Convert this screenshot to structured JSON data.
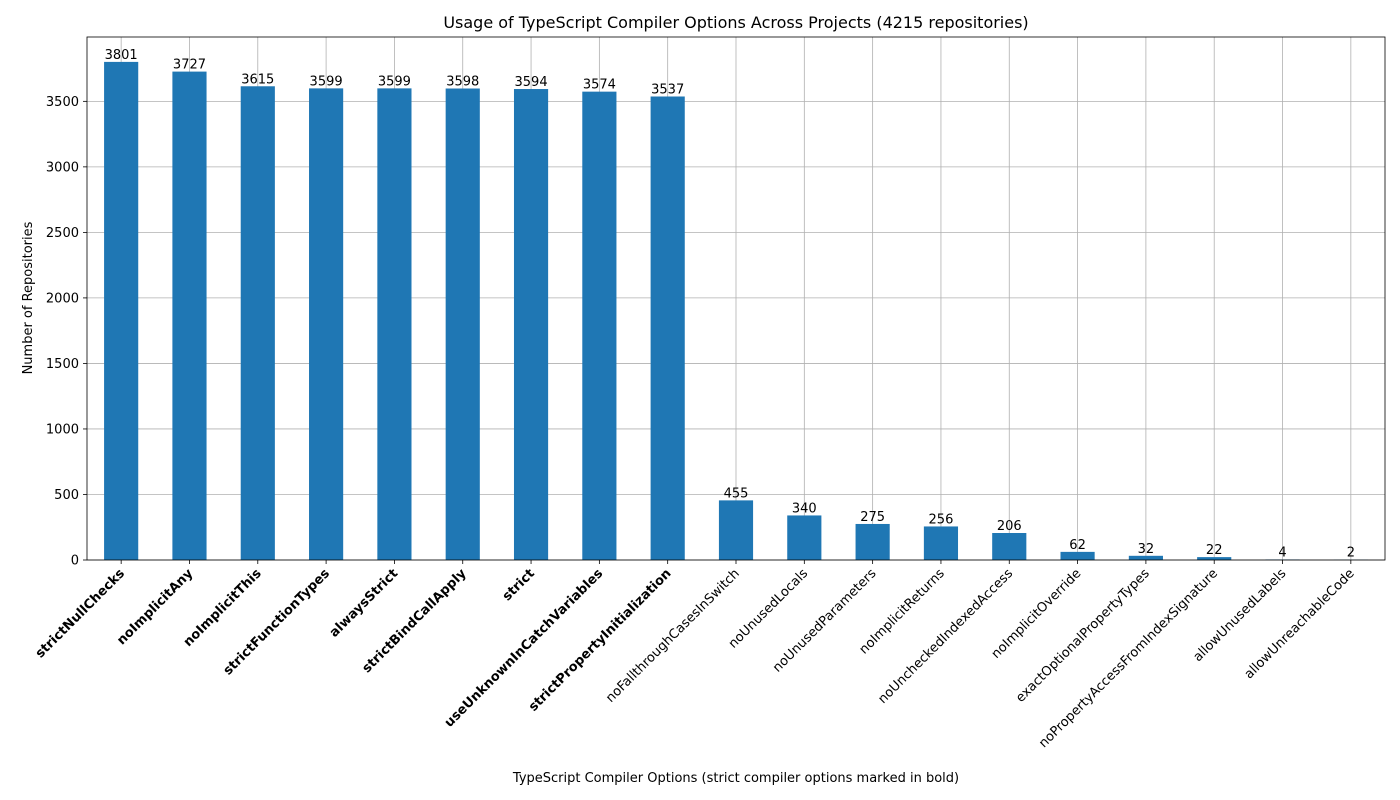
{
  "chart_data": {
    "type": "bar",
    "title": "Usage of TypeScript Compiler Options Across Projects (4215 repositories)",
    "xlabel": "TypeScript Compiler Options (strict compiler options marked in bold)",
    "ylabel": "Number of Repositories",
    "ylim": [
      0,
      3991
    ],
    "yticks": [
      0,
      500,
      1000,
      1500,
      2000,
      2500,
      3000,
      3500
    ],
    "grid": true,
    "bar_color": "#1f77b4",
    "categories": [
      "strictNullChecks",
      "noImplicitAny",
      "noImplicitThis",
      "strictFunctionTypes",
      "alwaysStrict",
      "strictBindCallApply",
      "strict",
      "useUnknownInCatchVariables",
      "strictPropertyInitialization",
      "noFallthroughCasesInSwitch",
      "noUnusedLocals",
      "noUnusedParameters",
      "noImplicitReturns",
      "noUncheckedIndexedAccess",
      "noImplicitOverride",
      "exactOptionalPropertyTypes",
      "noPropertyAccessFromIndexSignature",
      "allowUnusedLabels",
      "allowUnreachableCode"
    ],
    "bold": [
      true,
      true,
      true,
      true,
      true,
      true,
      true,
      true,
      true,
      false,
      false,
      false,
      false,
      false,
      false,
      false,
      false,
      false,
      false
    ],
    "values": [
      3801,
      3727,
      3615,
      3599,
      3599,
      3598,
      3594,
      3574,
      3537,
      455,
      340,
      275,
      256,
      206,
      62,
      32,
      22,
      4,
      2
    ]
  }
}
